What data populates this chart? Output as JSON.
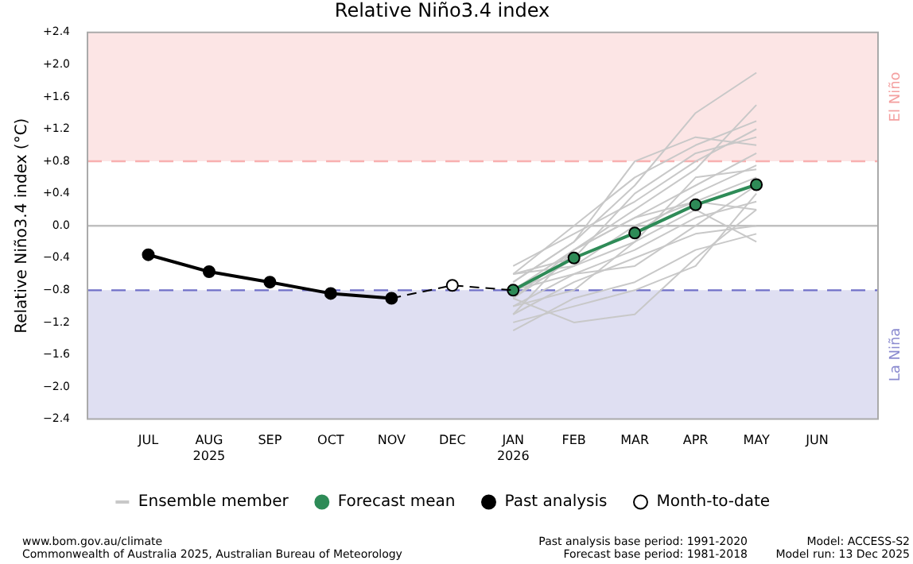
{
  "chart_data": {
    "type": "line",
    "title": "Relative Niño3.4 index",
    "ylabel": "Relative Niño3.4 index (°C)",
    "categories": [
      "JUL",
      "AUG\n2025",
      "SEP",
      "OCT",
      "NOV",
      "DEC",
      "JAN\n2026",
      "FEB",
      "MAR",
      "APR",
      "MAY",
      "JUN"
    ],
    "ylim": [
      -2.4,
      2.4
    ],
    "yticks": [
      {
        "value": -2.4,
        "label": "−2.4"
      },
      {
        "value": -2.0,
        "label": "−2.0"
      },
      {
        "value": -1.6,
        "label": "−1.6"
      },
      {
        "value": -1.2,
        "label": "−1.2"
      },
      {
        "value": -0.8,
        "label": "−0.8"
      },
      {
        "value": -0.4,
        "label": "−0.4"
      },
      {
        "value": 0,
        "label": "0.0"
      },
      {
        "value": 0.4,
        "label": "+0.4"
      },
      {
        "value": 0.8,
        "label": "+0.8"
      },
      {
        "value": 1.2,
        "label": "+1.2"
      },
      {
        "value": 1.6,
        "label": "+1.6"
      },
      {
        "value": 2.0,
        "label": "+2.0"
      },
      {
        "value": 2.4,
        "label": "+2.4"
      }
    ],
    "grid": false,
    "legend": "bottom",
    "bands": [
      {
        "axis": "y",
        "from": 0.8,
        "to": 2.4,
        "label": "El Niño",
        "color": "#f4a0a0"
      },
      {
        "axis": "y",
        "from": -2.4,
        "to": -0.8,
        "label": "La Niña",
        "color": "#8c8cd0"
      }
    ],
    "ref_lines": [
      {
        "axis": "y",
        "value": 0.8,
        "color": "#f8b0b0",
        "line_style": "dashed"
      },
      {
        "axis": "y",
        "value": -0.8,
        "color": "#7070c8",
        "line_style": "dashed"
      },
      {
        "axis": "y",
        "value": 0,
        "color": "#c0c0c0",
        "line_style": "solid"
      }
    ],
    "series": [
      {
        "name": "Ensemble member",
        "color": "#c8c8c8",
        "marker": "none",
        "values": [
          null,
          null,
          null,
          null,
          null,
          null,
          -0.8,
          -0.3,
          0.1,
          0.5,
          0.9,
          null
        ]
      },
      {
        "color": "#c8c8c8",
        "marker": "none",
        "values": [
          null,
          null,
          null,
          null,
          null,
          null,
          -1.3,
          -0.9,
          -0.7,
          -0.3,
          -0.1,
          null
        ]
      },
      {
        "color": "#c8c8c8",
        "marker": "none",
        "values": [
          null,
          null,
          null,
          null,
          null,
          null,
          -0.6,
          0.0,
          0.6,
          1.0,
          1.3,
          null
        ]
      },
      {
        "color": "#c8c8c8",
        "marker": "none",
        "values": [
          null,
          null,
          null,
          null,
          null,
          null,
          -0.9,
          -1.2,
          -1.1,
          -0.4,
          0.2,
          null
        ]
      },
      {
        "color": "#c8c8c8",
        "marker": "none",
        "values": [
          null,
          null,
          null,
          null,
          null,
          null,
          -0.7,
          -0.2,
          0.5,
          1.4,
          1.9,
          null
        ]
      },
      {
        "color": "#c8c8c8",
        "marker": "none",
        "values": [
          null,
          null,
          null,
          null,
          null,
          null,
          -1.0,
          -0.6,
          -0.3,
          0.1,
          0.3,
          null
        ]
      },
      {
        "color": "#c8c8c8",
        "marker": "none",
        "values": [
          null,
          null,
          null,
          null,
          null,
          null,
          -0.5,
          -0.1,
          0.3,
          0.8,
          1.2,
          null
        ]
      },
      {
        "color": "#c8c8c8",
        "marker": "none",
        "values": [
          null,
          null,
          null,
          null,
          null,
          null,
          -1.1,
          -0.7,
          -0.4,
          -0.1,
          0.0,
          null
        ]
      },
      {
        "color": "#c8c8c8",
        "marker": "none",
        "values": [
          null,
          null,
          null,
          null,
          null,
          null,
          -0.8,
          -0.5,
          0.0,
          0.3,
          0.6,
          null
        ]
      },
      {
        "color": "#c8c8c8",
        "marker": "none",
        "values": [
          null,
          null,
          null,
          null,
          null,
          null,
          -0.9,
          -0.3,
          0.2,
          0.7,
          1.5,
          null
        ]
      },
      {
        "color": "#c8c8c8",
        "marker": "none",
        "values": [
          null,
          null,
          null,
          null,
          null,
          null,
          -0.6,
          -0.4,
          -0.1,
          0.4,
          0.75,
          null
        ]
      },
      {
        "color": "#c8c8c8",
        "marker": "none",
        "values": [
          null,
          null,
          null,
          null,
          null,
          null,
          -1.2,
          -1.0,
          -0.8,
          -0.5,
          0.4,
          null
        ]
      },
      {
        "color": "#c8c8c8",
        "marker": "none",
        "values": [
          null,
          null,
          null,
          null,
          null,
          null,
          -0.7,
          -0.2,
          0.8,
          1.1,
          1.0,
          null
        ]
      },
      {
        "color": "#c8c8c8",
        "marker": "none",
        "values": [
          null,
          null,
          null,
          null,
          null,
          null,
          -1.0,
          -0.8,
          -0.2,
          0.6,
          0.7,
          null
        ]
      },
      {
        "color": "#c8c8c8",
        "marker": "none",
        "values": [
          null,
          null,
          null,
          null,
          null,
          null,
          -0.8,
          -0.6,
          -0.5,
          0.0,
          0.5,
          null
        ]
      },
      {
        "color": "#c8c8c8",
        "marker": "none",
        "values": [
          null,
          null,
          null,
          null,
          null,
          null,
          -0.9,
          -0.4,
          0.4,
          0.9,
          1.1,
          null
        ]
      },
      {
        "color": "#c8c8c8",
        "marker": "none",
        "values": [
          null,
          null,
          null,
          null,
          null,
          null,
          -0.6,
          -0.5,
          -0.2,
          0.2,
          -0.2,
          null
        ]
      },
      {
        "color": "#c8c8c8",
        "marker": "none",
        "values": [
          null,
          null,
          null,
          null,
          null,
          null,
          -1.1,
          -0.3,
          0.1,
          0.3,
          0.2,
          null
        ]
      },
      {
        "name": "Forecast mean",
        "color": "#2e8b57",
        "marker": "circle",
        "values": [
          null,
          null,
          null,
          null,
          null,
          null,
          -0.8,
          -0.4,
          -0.09,
          0.26,
          0.51,
          null
        ]
      },
      {
        "name": "Past analysis",
        "color": "#000000",
        "marker": "circle",
        "values": [
          -0.36,
          -0.57,
          -0.7,
          -0.84,
          -0.9,
          null,
          null,
          null,
          null,
          null,
          null,
          null
        ]
      },
      {
        "color": "#000000",
        "marker": "none",
        "line_style": "dashed",
        "values": [
          null,
          null,
          null,
          null,
          -0.9,
          -0.74,
          -0.8,
          null,
          null,
          null,
          null,
          null
        ]
      },
      {
        "name": "Month-to-date",
        "type": "scatter",
        "color": "#000000",
        "marker": "circle",
        "values": [
          null,
          null,
          null,
          null,
          null,
          -0.74,
          null,
          null,
          null,
          null,
          null,
          null
        ]
      }
    ],
    "annotations": [
      "www.bom.gov.au/climate",
      "Commonwealth of Australia 2025, Australian Bureau of Meteorology",
      "Past analysis base period: 1991-2020",
      "Forecast base period: 1981-2018",
      "Model: ACCESS-S2",
      "Model run: 13 Dec 2025"
    ]
  }
}
